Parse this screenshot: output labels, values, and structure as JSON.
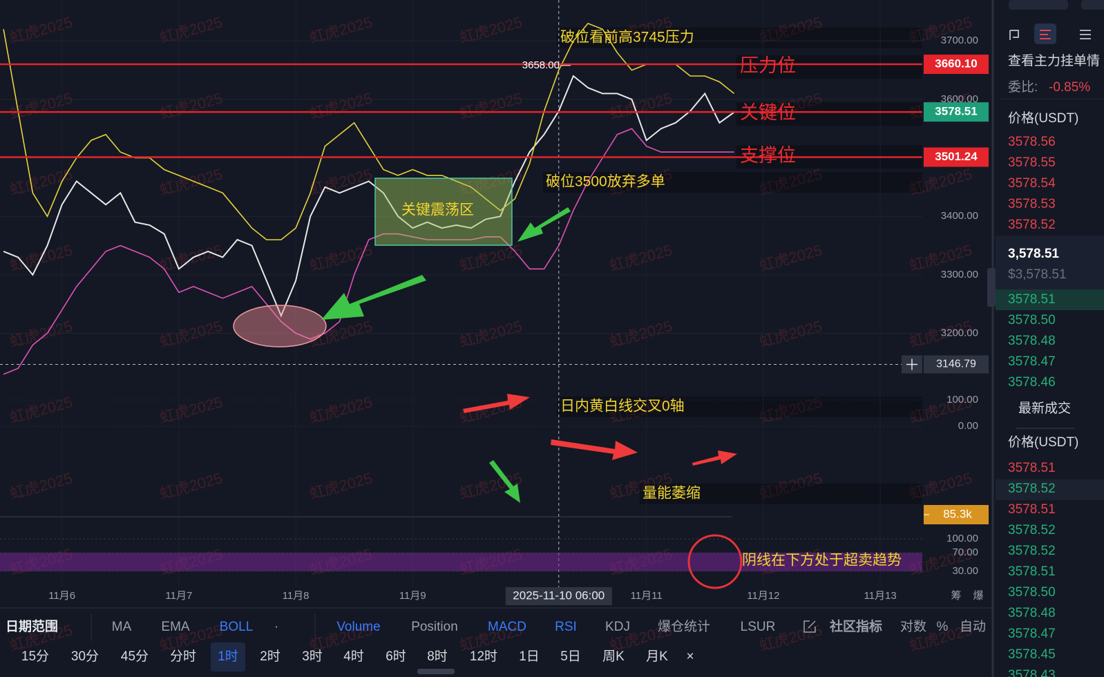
{
  "chart_data": {
    "type": "line",
    "x": [
      5.5,
      5.625,
      5.75,
      5.875,
      6,
      6.125,
      6.25,
      6.375,
      6.5,
      6.625,
      6.75,
      6.875,
      7,
      7.125,
      7.25,
      7.375,
      7.5,
      7.625,
      7.75,
      7.875,
      8,
      8.125,
      8.25,
      8.375,
      8.5,
      8.625,
      8.75,
      8.875,
      9,
      9.125,
      9.25,
      9.375,
      9.5,
      9.625,
      9.75,
      9.875,
      10,
      10.125,
      10.25,
      10.375,
      10.5,
      10.625,
      10.75,
      10.875,
      11,
      11.125,
      11.25,
      11.375,
      11.5,
      11.625,
      11.75
    ],
    "series": [
      {
        "color": "#e8e8e8",
        "values": [
          3340,
          3330,
          3300,
          3350,
          3420,
          3460,
          3440,
          3420,
          3440,
          3390,
          3385,
          3370,
          3310,
          3330,
          3340,
          3330,
          3360,
          3350,
          3290,
          3230,
          3290,
          3400,
          3450,
          3440,
          3450,
          3460,
          3440,
          3400,
          3380,
          3390,
          3380,
          3385,
          3380,
          3395,
          3400,
          3460,
          3510,
          3540,
          3580,
          3640,
          3620,
          3610,
          3610,
          3600,
          3530,
          3550,
          3560,
          3580,
          3610,
          3560,
          3578
        ]
      },
      {
        "color": "#e6d23a",
        "values": [
          3720,
          3580,
          3440,
          3400,
          3460,
          3500,
          3530,
          3540,
          3510,
          3500,
          3500,
          3480,
          3470,
          3460,
          3450,
          3440,
          3410,
          3380,
          3360,
          3360,
          3380,
          3440,
          3520,
          3540,
          3560,
          3520,
          3480,
          3470,
          3480,
          3470,
          3470,
          3460,
          3450,
          3430,
          3410,
          3430,
          3490,
          3580,
          3650,
          3700,
          3730,
          3720,
          3680,
          3650,
          3660,
          3660,
          3660,
          3640,
          3640,
          3630,
          3610
        ]
      },
      {
        "color": "#e052b8",
        "values": [
          3130,
          3140,
          3180,
          3200,
          3240,
          3280,
          3310,
          3340,
          3350,
          3340,
          3330,
          3310,
          3270,
          3280,
          3270,
          3260,
          3270,
          3280,
          3250,
          3220,
          3200,
          3190,
          3200,
          3220,
          3300,
          3360,
          3370,
          3370,
          3365,
          3360,
          3360,
          3360,
          3360,
          3365,
          3365,
          3340,
          3310,
          3310,
          3350,
          3410,
          3460,
          3500,
          3540,
          3550,
          3520,
          3510,
          3510,
          3510,
          3510,
          3510,
          3510
        ]
      }
    ],
    "xlim": [
      5.47,
      13.36
    ],
    "xticks": [
      {
        "value": 6,
        "label": "11月6"
      },
      {
        "value": 7,
        "label": "11月7"
      },
      {
        "value": 8,
        "label": "11月8"
      },
      {
        "value": 9,
        "label": "11月9"
      },
      {
        "value": 11,
        "label": "11月11"
      },
      {
        "value": 12,
        "label": "11月12"
      },
      {
        "value": 13,
        "label": "11月13"
      }
    ],
    "ylim": [
      3119,
      3770
    ],
    "yticks": [
      {
        "value": 3200,
        "label": "3200.00"
      },
      {
        "value": 3300,
        "label": "3300.00"
      },
      {
        "value": 3400,
        "label": "3400.00"
      },
      {
        "value": 3600,
        "label": "3600.00"
      },
      {
        "value": 3700,
        "label": "3700.00"
      }
    ],
    "grid": true,
    "price_lines": [
      {
        "value": 3660.1,
        "label": "3660.10",
        "color": "#e5242b"
      },
      {
        "value": 3578.51,
        "label": "3578.51",
        "color": "#1f9e7a"
      },
      {
        "value": 3501.24,
        "label": "3501.24",
        "color": "#e5242b"
      }
    ],
    "max_marker": {
      "value": 3658,
      "label": "3658.00"
    },
    "crosshair": {
      "x": 10.25,
      "x_label": "2025-11-10 06:00",
      "price": 3146.79
    },
    "annotations": [
      "破位看前高3745压力",
      "压力位",
      "关键位",
      "支撑位",
      "破位3500放弃多单",
      "关键震荡区",
      "日内黄白线交叉0轴",
      "量能萎缩",
      "阴线在下方处于超卖趋势"
    ],
    "macd_ylim": [
      -113,
      150
    ],
    "macd_ticks": [
      {
        "value": 100,
        "label": "100.00"
      },
      {
        "value": 0,
        "label": "0.00"
      }
    ],
    "volume_tag": "85.3k",
    "rsi_ylim": [
      3,
      115
    ],
    "rsi_ticks": [
      {
        "value": 100,
        "label": "100.00"
      },
      {
        "value": 70,
        "label": "70.00"
      },
      {
        "value": 30,
        "label": "30.00"
      }
    ],
    "corner_labels": [
      "筹",
      "爆"
    ]
  },
  "watermark": "虹虎2025",
  "toolbar": {
    "indicators": [
      "日期范围",
      "MA",
      "EMA",
      "BOLL",
      "·",
      "Volume",
      "Position",
      "MACD",
      "RSI",
      "KDJ",
      "爆仓统计",
      "LSUR",
      "社区指标",
      "对数",
      "%",
      "自动"
    ],
    "timeframes": [
      "15分",
      "30分",
      "45分",
      "分时",
      "1时",
      "2时",
      "3时",
      "4时",
      "6时",
      "8时",
      "12时",
      "1日",
      "5日",
      "周K",
      "月K",
      "×"
    ]
  },
  "order_book": {
    "title": "查看主力挂单情",
    "ratio_label": "委比:",
    "ratio": "-0.85%",
    "price_header": "价格(USDT)",
    "asks": [
      "3578.56",
      "3578.55",
      "3578.54",
      "3578.53",
      "3578.52"
    ],
    "last_price": "3,578.51",
    "last_price_usd": "$3,578.51",
    "bids": [
      "3578.51",
      "3578.50",
      "3578.48",
      "3578.47",
      "3578.46"
    ],
    "trades_title": "最新成交",
    "trades_header": "价格(USDT)",
    "trades": [
      "3578.51",
      "3578.52",
      "3578.51",
      "3578.52",
      "3578.52",
      "3578.51",
      "3578.50",
      "3578.48",
      "3578.47",
      "3578.45",
      "3578.43"
    ],
    "trade_colors": [
      "#e5434b",
      "#25b07a",
      "#e5434b",
      "#25b07a",
      "#25b07a",
      "#25b07a",
      "#25b07a",
      "#25b07a",
      "#25b07a",
      "#25b07a",
      "#25b07a"
    ]
  }
}
